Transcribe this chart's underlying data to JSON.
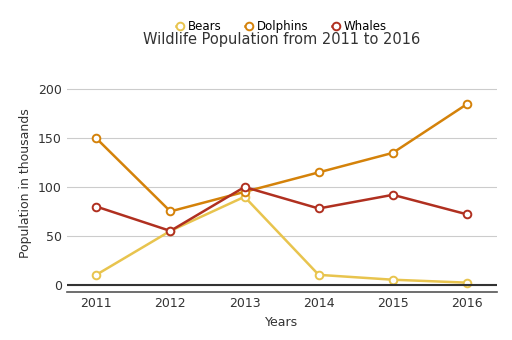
{
  "title": "Wildlife Population from 2011 to 2016",
  "xlabel": "Years",
  "ylabel": "Population in thousands",
  "years": [
    2011,
    2012,
    2013,
    2014,
    2015,
    2016
  ],
  "series": {
    "Bears": {
      "values": [
        10,
        55,
        90,
        10,
        5,
        2
      ],
      "color": "#E8C44E",
      "markerfacecolor": "#FFFFFF",
      "markeredgecolor": "#E8C44E"
    },
    "Dolphins": {
      "values": [
        150,
        75,
        95,
        115,
        135,
        185
      ],
      "color": "#D4820A",
      "markerfacecolor": "#FFFFFF",
      "markeredgecolor": "#D4820A"
    },
    "Whales": {
      "values": [
        80,
        55,
        100,
        78,
        92,
        72
      ],
      "color": "#B03020",
      "markerfacecolor": "#FFFFFF",
      "markeredgecolor": "#B03020"
    }
  },
  "ylim": [
    -8,
    215
  ],
  "yticks": [
    0,
    50,
    100,
    150,
    200
  ],
  "xlim": [
    2010.6,
    2016.4
  ],
  "background_color": "#FFFFFF",
  "grid_color": "#CCCCCC",
  "title_fontsize": 10.5,
  "legend_fontsize": 8.5,
  "axis_label_fontsize": 9,
  "tick_fontsize": 9,
  "linewidth": 1.8,
  "markersize": 5.5,
  "markeredgewidth": 1.4
}
